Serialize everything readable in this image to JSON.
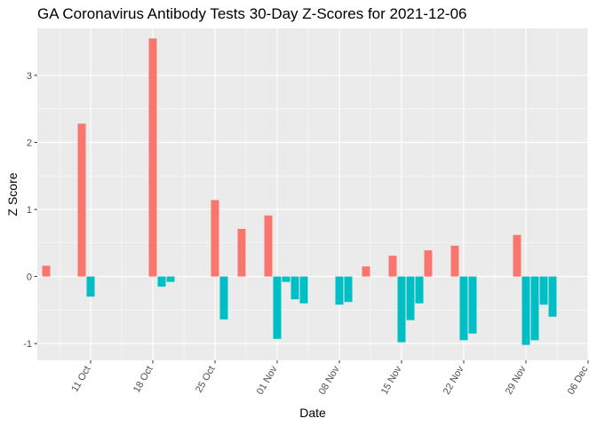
{
  "chart_data": {
    "type": "bar",
    "title": "GA Coronavirus Antibody Tests 30-Day Z-Scores for 2021-12-06",
    "xlabel": "Date",
    "ylabel": "Z Score",
    "ylim": [
      -1.25,
      3.7
    ],
    "y_ticks": [
      -1,
      0,
      1,
      2,
      3
    ],
    "x_ticks": [
      {
        "date": "2021-10-11",
        "label": "11 Oct"
      },
      {
        "date": "2021-10-18",
        "label": "18 Oct"
      },
      {
        "date": "2021-10-25",
        "label": "25 Oct"
      },
      {
        "date": "2021-11-01",
        "label": "01 Nov"
      },
      {
        "date": "2021-11-08",
        "label": "08 Nov"
      },
      {
        "date": "2021-11-15",
        "label": "15 Nov"
      },
      {
        "date": "2021-11-22",
        "label": "22 Nov"
      },
      {
        "date": "2021-11-29",
        "label": "29 Nov"
      },
      {
        "date": "2021-12-06",
        "label": "06 Dec"
      }
    ],
    "xlim": [
      "2021-10-05",
      "2021-12-06"
    ],
    "colors": {
      "positive": "#F8766D",
      "negative": "#00BFC4",
      "panel": "#EBEBEB",
      "grid": "#FFFFFF"
    },
    "legend": "none",
    "grid": true,
    "points": [
      {
        "date": "2021-10-06",
        "value": 0.16
      },
      {
        "date": "2021-10-10",
        "value": 2.28
      },
      {
        "date": "2021-10-11",
        "value": -0.3
      },
      {
        "date": "2021-10-18",
        "value": 3.55
      },
      {
        "date": "2021-10-19",
        "value": -0.15
      },
      {
        "date": "2021-10-20",
        "value": -0.08
      },
      {
        "date": "2021-10-25",
        "value": 1.14
      },
      {
        "date": "2021-10-26",
        "value": -0.64
      },
      {
        "date": "2021-10-28",
        "value": 0.71
      },
      {
        "date": "2021-10-31",
        "value": 0.91
      },
      {
        "date": "2021-11-01",
        "value": -0.93
      },
      {
        "date": "2021-11-02",
        "value": -0.08
      },
      {
        "date": "2021-11-03",
        "value": -0.34
      },
      {
        "date": "2021-11-04",
        "value": -0.4
      },
      {
        "date": "2021-11-08",
        "value": -0.42
      },
      {
        "date": "2021-11-09",
        "value": -0.38
      },
      {
        "date": "2021-11-11",
        "value": 0.15
      },
      {
        "date": "2021-11-14",
        "value": 0.31
      },
      {
        "date": "2021-11-15",
        "value": -0.98
      },
      {
        "date": "2021-11-16",
        "value": -0.65
      },
      {
        "date": "2021-11-17",
        "value": -0.4
      },
      {
        "date": "2021-11-18",
        "value": 0.39
      },
      {
        "date": "2021-11-21",
        "value": 0.46
      },
      {
        "date": "2021-11-22",
        "value": -0.95
      },
      {
        "date": "2021-11-23",
        "value": -0.85
      },
      {
        "date": "2021-11-28",
        "value": 0.62
      },
      {
        "date": "2021-11-29",
        "value": -1.02
      },
      {
        "date": "2021-11-30",
        "value": -0.95
      },
      {
        "date": "2021-12-01",
        "value": -0.42
      },
      {
        "date": "2021-12-02",
        "value": -0.6
      }
    ]
  }
}
